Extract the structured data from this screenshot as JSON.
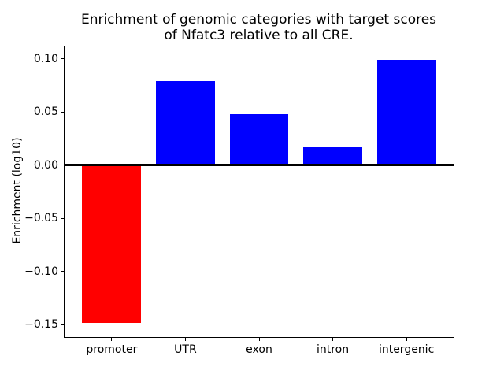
{
  "figure": {
    "background": "#ffffff"
  },
  "chart_data": {
    "type": "bar",
    "title": "Enrichment of genomic categories with target scores\nof Nfatc3 relative to all CRE.",
    "xlabel": "",
    "ylabel": "Enrichment (log10)",
    "categories": [
      "promoter",
      "UTR",
      "exon",
      "intron",
      "intergenic"
    ],
    "values": [
      -0.148,
      0.079,
      0.048,
      0.017,
      0.099
    ],
    "bar_colors": [
      "#ff0000",
      "#0000ff",
      "#0000ff",
      "#0000ff",
      "#0000ff"
    ],
    "positive_color": "#0000ff",
    "negative_color": "#ff0000",
    "yticks": [
      0.1,
      0.05,
      0.0,
      -0.05,
      -0.1,
      -0.15
    ],
    "ytick_labels": [
      "0.10",
      "0.05",
      "0.00",
      "−0.05",
      "−0.10",
      "−0.15"
    ],
    "ylim": [
      -0.1615,
      0.1115
    ],
    "xlim": [
      -0.64,
      4.64
    ],
    "bar_width": 0.8,
    "grid": false,
    "zero_line": true,
    "spine_color": "#000000",
    "text_color": "#000000"
  }
}
